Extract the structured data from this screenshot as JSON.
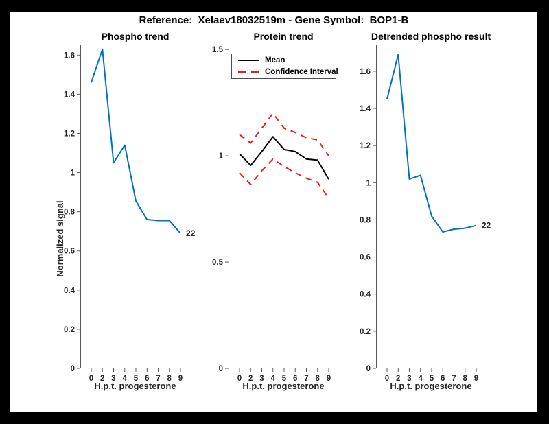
{
  "figure_title": "Reference:  Xelaev18032519m - Gene Symbol:  BOP1-B",
  "colors": {
    "trend_blue": "#0072bd",
    "mean_black": "#000000",
    "ci_red": "#ee1c1c",
    "axis_gray": "#595959",
    "text_dark": "#262626"
  },
  "chart_data": [
    {
      "type": "line",
      "title": "Phospho trend",
      "xlabel": "H.p.t. progesterone",
      "ylabel": "Normalized signal",
      "x_labels": [
        "0",
        "2",
        "3",
        "4",
        "5",
        "6",
        "7",
        "8",
        "9"
      ],
      "ylim": [
        0,
        1.65
      ],
      "yticks": [
        "0",
        "0.2",
        "0.4",
        "0.6",
        "0.8",
        "1",
        "1.2",
        "1.4",
        "1.6"
      ],
      "grid": false,
      "annotation": "22",
      "series": [
        {
          "name": "Phospho",
          "color": "#0072bd",
          "dash": false,
          "values": [
            1.46,
            1.63,
            1.05,
            1.14,
            0.855,
            0.76,
            0.755,
            0.755,
            0.69
          ]
        }
      ]
    },
    {
      "type": "line",
      "title": "Protein trend",
      "xlabel": "H.p.t. progesterone",
      "ylabel": "",
      "x_labels": [
        "0",
        "2",
        "3",
        "4",
        "5",
        "6",
        "7",
        "8",
        "9"
      ],
      "ylim": [
        0,
        1.52
      ],
      "yticks": [
        "0",
        "0.5",
        "1",
        "1.5"
      ],
      "grid": false,
      "annotation": "",
      "legend_position": "top-left",
      "series": [
        {
          "name": "Mean",
          "color": "#000000",
          "dash": false,
          "values": [
            1.01,
            0.955,
            1.02,
            1.09,
            1.03,
            1.02,
            0.985,
            0.98,
            0.89
          ]
        },
        {
          "name": "Confidence Interval",
          "color": "#ee1c1c",
          "dash": true,
          "values": [
            1.1,
            1.06,
            1.13,
            1.2,
            1.13,
            1.11,
            1.085,
            1.075,
            1.0
          ]
        },
        {
          "name": "Confidence Interval",
          "color": "#ee1c1c",
          "dash": true,
          "values": [
            0.92,
            0.865,
            0.93,
            0.985,
            0.95,
            0.92,
            0.895,
            0.875,
            0.8
          ]
        }
      ]
    },
    {
      "type": "line",
      "title": "Detrended phospho result",
      "xlabel": "H.p.t. progesterone",
      "ylabel": "",
      "x_labels": [
        "0",
        "2",
        "3",
        "4",
        "5",
        "6",
        "7",
        "8",
        "9"
      ],
      "ylim": [
        0,
        1.74
      ],
      "yticks": [
        "0",
        "0.2",
        "0.4",
        "0.6",
        "0.8",
        "1",
        "1.2",
        "1.4",
        "1.6"
      ],
      "grid": false,
      "annotation": "22",
      "series": [
        {
          "name": "Detrended phospho",
          "color": "#0072bd",
          "dash": false,
          "values": [
            1.45,
            1.69,
            1.02,
            1.04,
            0.82,
            0.735,
            0.75,
            0.755,
            0.77
          ]
        }
      ]
    }
  ]
}
